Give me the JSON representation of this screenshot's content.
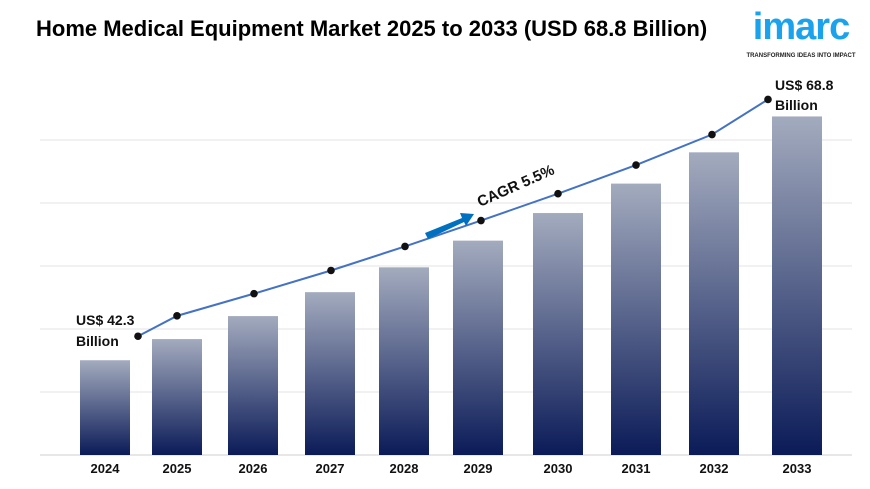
{
  "title": "Home Medical Equipment Market 2025 to 2033 (USD 68.8 Billion)",
  "logo": {
    "word": "imarc",
    "tagline": "TRANSFORMING IDEAS INTO IMPACT",
    "color": "#1aa3ec"
  },
  "chart_data": {
    "type": "bar",
    "categories": [
      "2024",
      "2025",
      "2026",
      "2027",
      "2028",
      "2029",
      "2030",
      "2031",
      "2032",
      "2033"
    ],
    "values": [
      42.3,
      44.6,
      47.1,
      49.7,
      52.4,
      55.3,
      58.3,
      61.5,
      64.9,
      68.8
    ],
    "title": "Home Medical Equipment Market 2025 to 2033 (USD 68.8 Billion)",
    "xlabel": "",
    "ylabel": "",
    "ylim": [
      32,
      72
    ],
    "grid": true,
    "trend_line": true,
    "annotations": {
      "start": [
        "US$ 42.3",
        "Billion"
      ],
      "end": [
        "US$ 68.8",
        "Billion"
      ],
      "cagr": "CAGR 5.5%"
    },
    "colors": {
      "bar_top": "#a3abbe",
      "bar_bottom": "#0b1b58",
      "line": "#4472c4",
      "arrow": "#0070c0"
    }
  }
}
